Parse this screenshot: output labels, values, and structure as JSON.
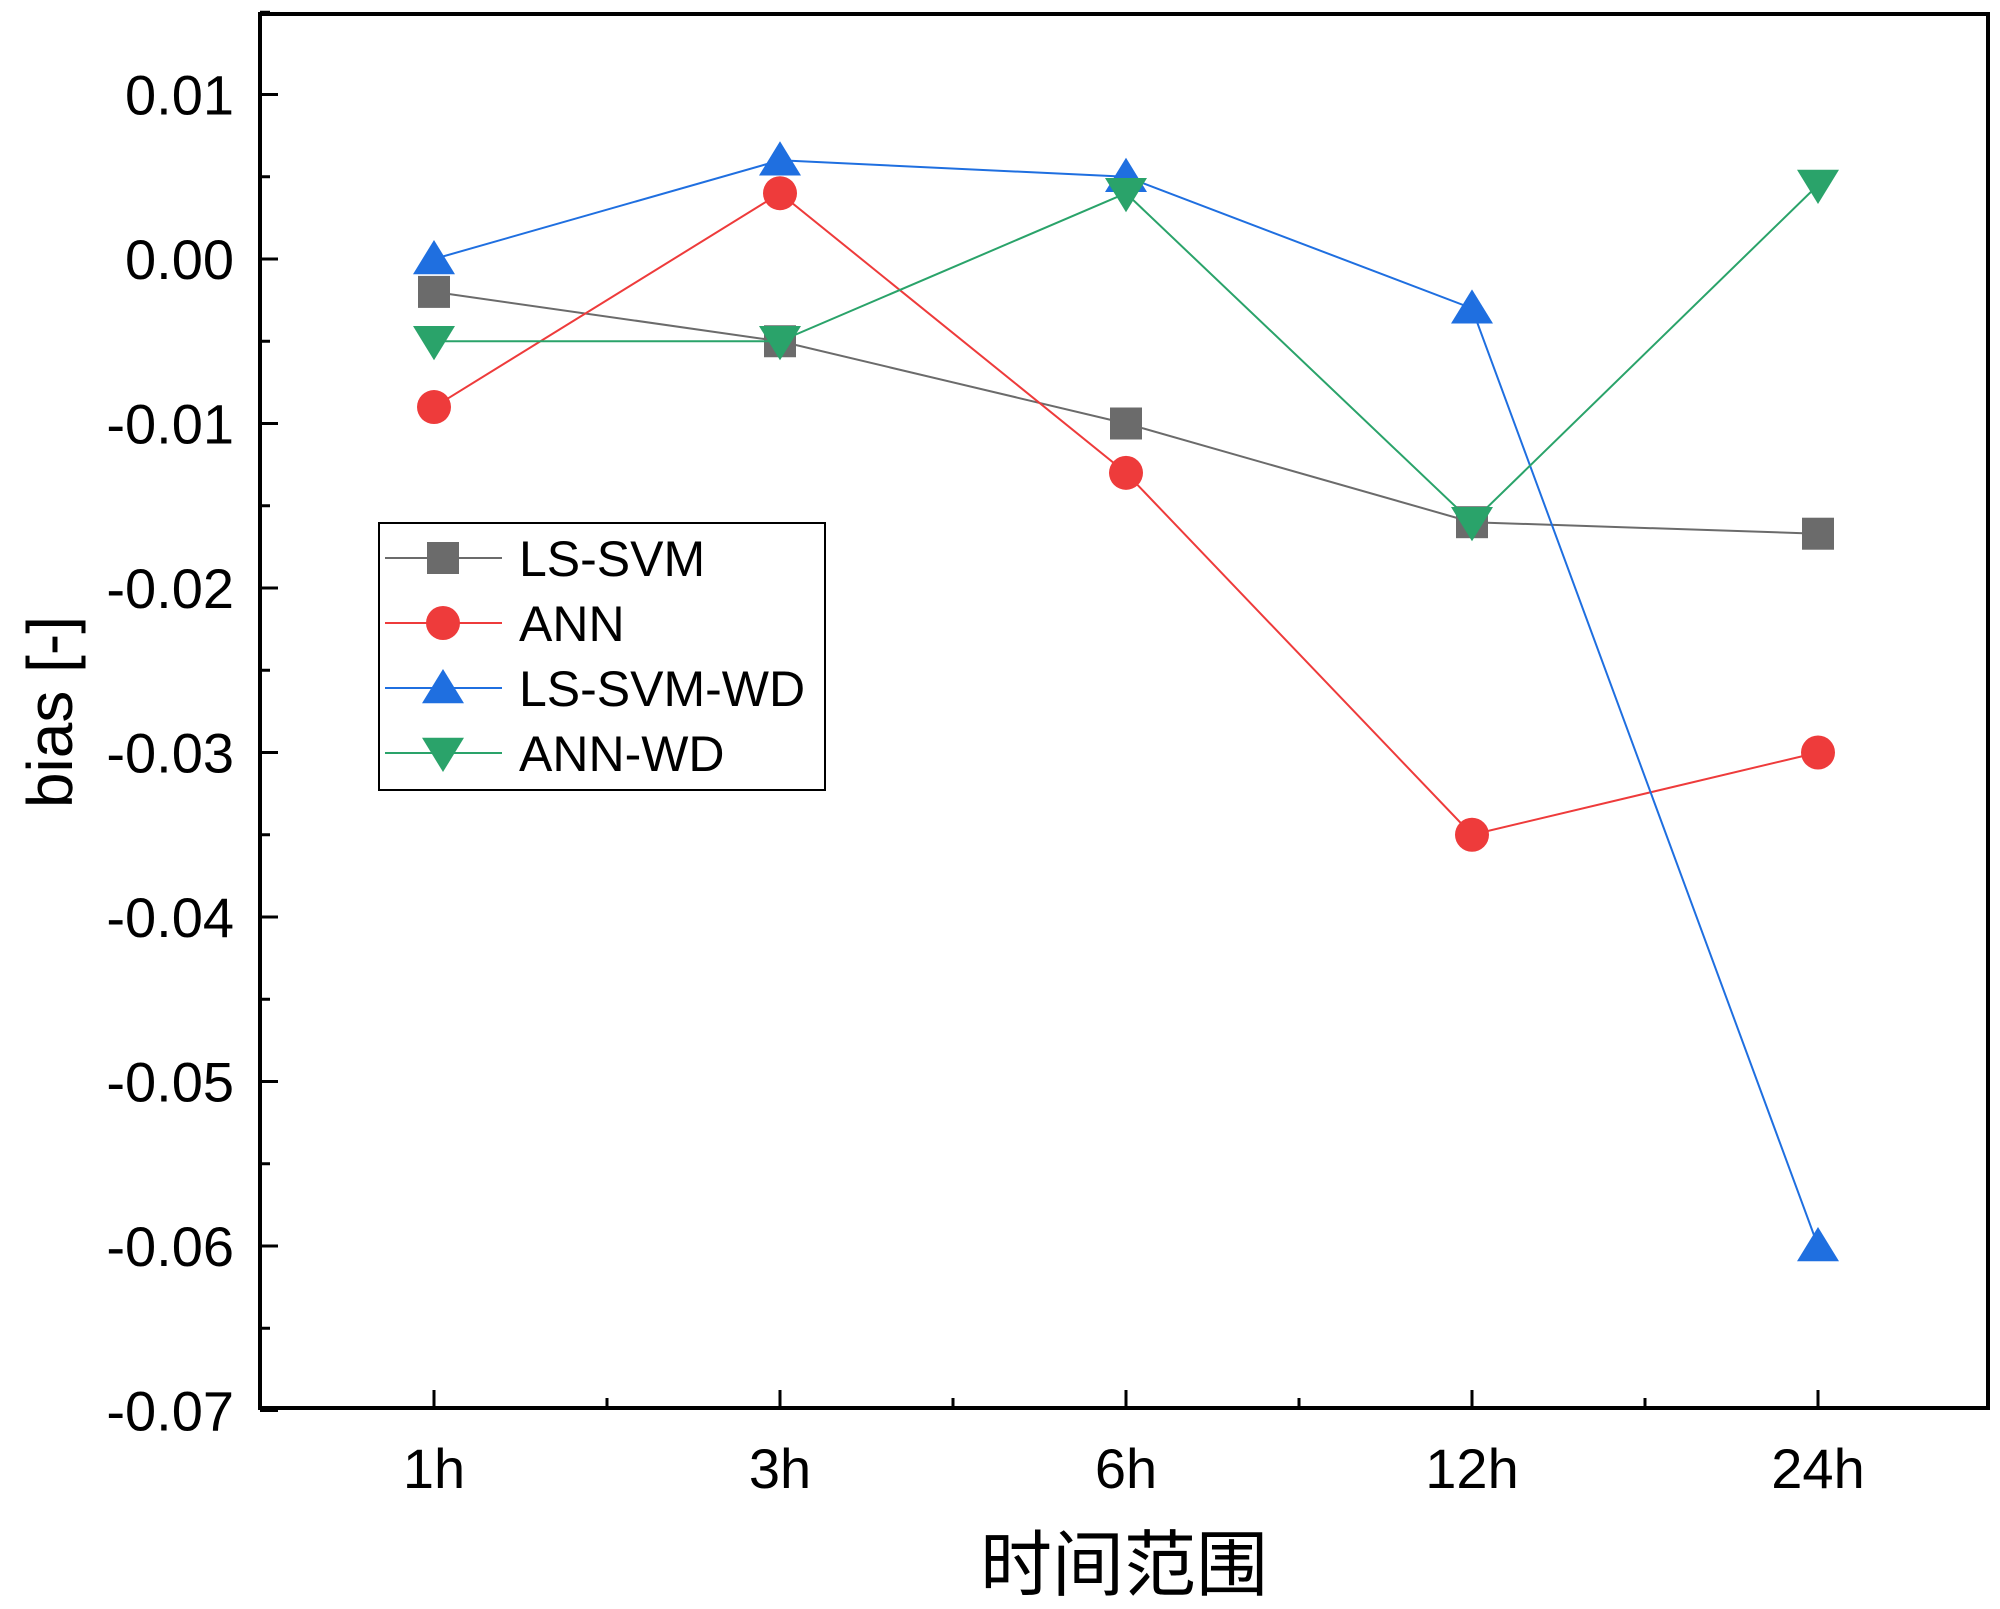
{
  "chart_data": {
    "type": "line",
    "title": "",
    "xlabel": "时间范围",
    "ylabel": "bias [-]",
    "categories": [
      "1h",
      "3h",
      "6h",
      "12h",
      "24h"
    ],
    "ylim": [
      -0.07,
      0.015
    ],
    "yticks": [
      0.01,
      0.0,
      -0.01,
      -0.02,
      -0.03,
      -0.04,
      -0.05,
      -0.06,
      -0.07
    ],
    "ytick_labels": [
      "0.01",
      "0.00",
      "-0.01",
      "-0.02",
      "-0.03",
      "-0.04",
      "-0.05",
      "-0.06",
      "-0.07"
    ],
    "grid": false,
    "legend_position": "center-left",
    "series": [
      {
        "name": "LS-SVM",
        "marker": "square",
        "color": "#6b6b6b",
        "values": [
          -0.002,
          -0.005,
          -0.01,
          -0.016,
          -0.0167
        ]
      },
      {
        "name": "ANN",
        "marker": "circle",
        "color": "#ee3b3b",
        "values": [
          -0.009,
          0.004,
          -0.013,
          -0.035,
          -0.03
        ]
      },
      {
        "name": "LS-SVM-WD",
        "marker": "triangle-up",
        "color": "#1f6fe0",
        "values": [
          0.0,
          0.006,
          0.005,
          -0.003,
          -0.06
        ]
      },
      {
        "name": "ANN-WD",
        "marker": "triangle-down",
        "color": "#2aa36a",
        "values": [
          -0.005,
          -0.005,
          0.004,
          -0.016,
          0.0045
        ]
      }
    ]
  }
}
